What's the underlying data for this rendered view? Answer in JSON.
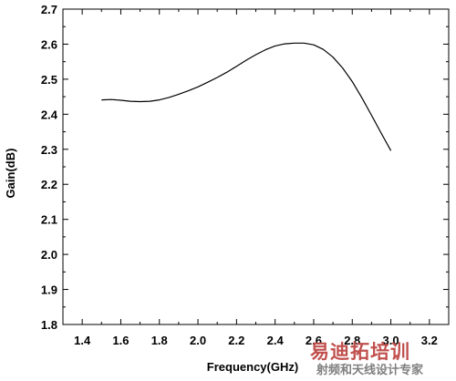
{
  "chart_data": {
    "type": "line",
    "title": "",
    "xlabel": "Frequency(GHz)",
    "ylabel": "Gain(dB)",
    "xlim": [
      1.3,
      3.3
    ],
    "ylim": [
      1.8,
      2.7
    ],
    "xticks": [
      1.4,
      1.6,
      1.8,
      2.0,
      2.2,
      2.4,
      2.6,
      2.8,
      3.0,
      3.2
    ],
    "yticks": [
      1.8,
      1.9,
      2.0,
      2.1,
      2.2,
      2.3,
      2.4,
      2.5,
      2.6,
      2.7
    ],
    "xtick_labels": [
      "1.4",
      "1.6",
      "1.8",
      "2.0",
      "2.2",
      "2.4",
      "2.6",
      "2.8",
      "3.0",
      "3.2"
    ],
    "ytick_labels": [
      "1.8",
      "1.9",
      "2.0",
      "2.1",
      "2.2",
      "2.3",
      "2.4",
      "2.5",
      "2.6",
      "2.7"
    ],
    "grid": false,
    "series": [
      {
        "color": "#000000",
        "x": [
          1.5,
          1.55,
          1.6,
          1.65,
          1.7,
          1.75,
          1.8,
          1.85,
          1.9,
          1.95,
          2.0,
          2.05,
          2.1,
          2.15,
          2.2,
          2.25,
          2.3,
          2.35,
          2.4,
          2.45,
          2.5,
          2.55,
          2.6,
          2.65,
          2.7,
          2.75,
          2.8,
          2.85,
          2.9,
          2.95,
          3.0
        ],
        "y": [
          2.441,
          2.442,
          2.44,
          2.437,
          2.436,
          2.437,
          2.441,
          2.448,
          2.457,
          2.467,
          2.478,
          2.491,
          2.505,
          2.52,
          2.537,
          2.554,
          2.57,
          2.584,
          2.595,
          2.601,
          2.603,
          2.603,
          2.598,
          2.585,
          2.563,
          2.532,
          2.493,
          2.447,
          2.397,
          2.346,
          2.296
        ]
      }
    ]
  },
  "watermark": {
    "logo_text": "易迪拓培训",
    "sub_text": "射频和天线设计专家",
    "logo_color": "#c0504d",
    "sub_color": "#7f7f7f"
  }
}
